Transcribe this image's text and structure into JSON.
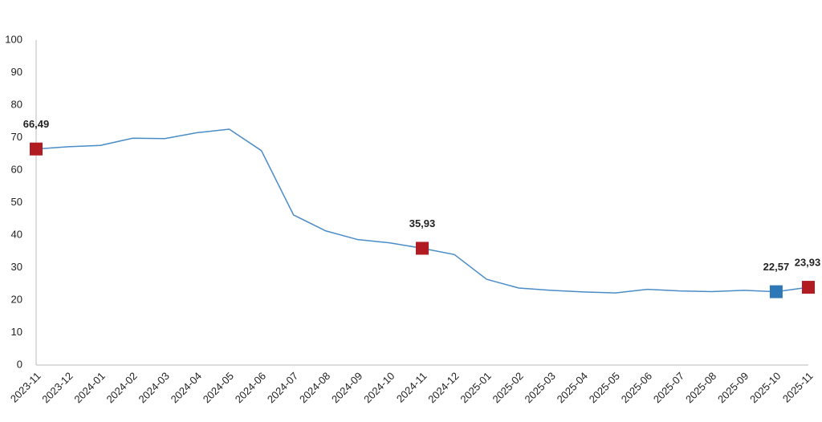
{
  "chart_data": {
    "type": "line",
    "x": [
      "2023-11",
      "2023-12",
      "2024-01",
      "2024-02",
      "2024-03",
      "2024-04",
      "2024-05",
      "2024-06",
      "2024-07",
      "2024-08",
      "2024-09",
      "2024-10",
      "2024-11",
      "2024-12",
      "2025-01",
      "2025-02",
      "2025-03",
      "2025-04",
      "2025-05",
      "2025-06",
      "2025-07",
      "2025-08",
      "2025-09",
      "2025-10",
      "2025-11"
    ],
    "series": [
      {
        "color": "#4a8cc7",
        "values": [
          66.49,
          67.2,
          67.6,
          69.8,
          69.7,
          71.5,
          72.6,
          66.0,
          46.2,
          41.3,
          38.6,
          37.6,
          35.93,
          34.0,
          26.4,
          23.7,
          23.0,
          22.5,
          22.2,
          23.3,
          22.8,
          22.6,
          23.0,
          22.57,
          23.93
        ],
        "value_labels": [
          "66,49",
          null,
          null,
          null,
          null,
          null,
          null,
          null,
          null,
          null,
          null,
          null,
          "35,93",
          null,
          null,
          null,
          null,
          null,
          null,
          null,
          null,
          null,
          null,
          "22,57",
          "23,93"
        ],
        "marker_colors": [
          "#b01c22",
          null,
          null,
          null,
          null,
          null,
          null,
          null,
          null,
          null,
          null,
          null,
          "#b01c22",
          null,
          null,
          null,
          null,
          null,
          null,
          null,
          null,
          null,
          null,
          "#2e78b8",
          "#b01c22"
        ]
      }
    ],
    "ylim": [
      0,
      100
    ],
    "yticks": [
      0,
      10,
      20,
      30,
      40,
      50,
      60,
      70,
      80,
      90,
      100
    ],
    "grid": false
  }
}
